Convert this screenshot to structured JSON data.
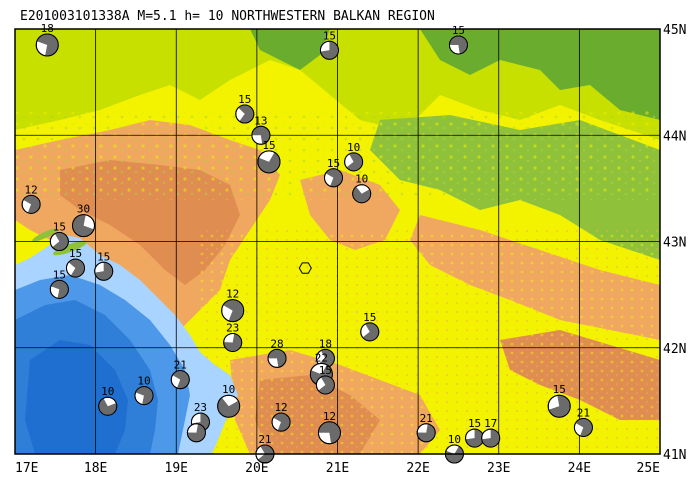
{
  "header": {
    "title": "E201003101338A M=5.1 h= 10 NORTHWESTERN BALKAN REGION"
  },
  "axes": {
    "x_ticks": [
      "17E",
      "18E",
      "19E",
      "20E",
      "21E",
      "22E",
      "23E",
      "24E",
      "25E"
    ],
    "y_ticks": [
      "45N",
      "44N",
      "43N",
      "42N",
      "41N"
    ]
  },
  "colors": {
    "frame": "#000000",
    "deep_sea": "#2f7fd8",
    "mid_sea": "#4d98e8",
    "shallow_sea": "#a9d4ff",
    "lowland": "#f3f300",
    "upland": "#c8e000",
    "hills": "#f0a860",
    "mountains": "#e08d52",
    "forest_green": "#8fc23a",
    "dark_green": "#6aad2e",
    "grid": "#000000"
  },
  "epicenter": {
    "lon": 20.6,
    "lat": 42.75,
    "marker": "hexagon"
  },
  "events": [
    {
      "lon": 17.4,
      "lat": 44.85,
      "depth": "18",
      "rot": 20
    },
    {
      "lon": 20.9,
      "lat": 44.8,
      "depth": "15",
      "rot": 90
    },
    {
      "lon": 22.5,
      "lat": 44.85,
      "depth": "15",
      "rot": 0
    },
    {
      "lon": 19.85,
      "lat": 44.2,
      "depth": "15",
      "rot": 45
    },
    {
      "lon": 20.05,
      "lat": 44.0,
      "depth": "13",
      "rot": 0
    },
    {
      "lon": 20.15,
      "lat": 43.75,
      "depth": "15",
      "rot": 120
    },
    {
      "lon": 21.2,
      "lat": 43.75,
      "depth": "10",
      "rot": 60
    },
    {
      "lon": 20.95,
      "lat": 43.6,
      "depth": "15",
      "rot": 30
    },
    {
      "lon": 21.3,
      "lat": 43.45,
      "depth": "10",
      "rot": 150
    },
    {
      "lon": 17.2,
      "lat": 43.35,
      "depth": "12",
      "rot": 30
    },
    {
      "lon": 17.85,
      "lat": 43.15,
      "depth": "30",
      "rot": 200
    },
    {
      "lon": 17.55,
      "lat": 43.0,
      "depth": "15",
      "rot": 60
    },
    {
      "lon": 17.75,
      "lat": 42.75,
      "depth": "15",
      "rot": 40
    },
    {
      "lon": 18.1,
      "lat": 42.72,
      "depth": "15",
      "rot": 90
    },
    {
      "lon": 17.55,
      "lat": 42.55,
      "depth": "15",
      "rot": 20
    },
    {
      "lon": 19.7,
      "lat": 42.35,
      "depth": "12",
      "rot": 30
    },
    {
      "lon": 21.4,
      "lat": 42.15,
      "depth": "15",
      "rot": 60
    },
    {
      "lon": 19.7,
      "lat": 42.05,
      "depth": "23",
      "rot": 100
    },
    {
      "lon": 20.25,
      "lat": 41.9,
      "depth": "28",
      "rot": 0
    },
    {
      "lon": 20.85,
      "lat": 41.9,
      "depth": "18",
      "rot": 60
    },
    {
      "lon": 20.8,
      "lat": 41.75,
      "depth": "22",
      "rot": 120
    },
    {
      "lon": 20.85,
      "lat": 41.65,
      "depth": "15",
      "rot": 60
    },
    {
      "lon": 19.05,
      "lat": 41.7,
      "depth": "21",
      "rot": 30
    },
    {
      "lon": 18.6,
      "lat": 41.55,
      "depth": "10",
      "rot": 20
    },
    {
      "lon": 18.15,
      "lat": 41.45,
      "depth": "10",
      "rot": 160
    },
    {
      "lon": 19.65,
      "lat": 41.45,
      "depth": "10",
      "rot": 150
    },
    {
      "lon": 19.3,
      "lat": 41.3,
      "depth": "23",
      "rot": 90
    },
    {
      "lon": 19.25,
      "lat": 41.2,
      "depth": "",
      "rot": 100
    },
    {
      "lon": 20.3,
      "lat": 41.3,
      "depth": "12",
      "rot": 30
    },
    {
      "lon": 20.1,
      "lat": 41.0,
      "depth": "21",
      "rot": 60
    },
    {
      "lon": 20.9,
      "lat": 41.2,
      "depth": "12",
      "rot": 0
    },
    {
      "lon": 22.1,
      "lat": 41.2,
      "depth": "21",
      "rot": 100
    },
    {
      "lon": 22.45,
      "lat": 41.0,
      "depth": "10",
      "rot": 120
    },
    {
      "lon": 22.7,
      "lat": 41.15,
      "depth": "15",
      "rot": 90
    },
    {
      "lon": 22.9,
      "lat": 41.15,
      "depth": "17",
      "rot": 90
    },
    {
      "lon": 23.75,
      "lat": 41.45,
      "depth": "15",
      "rot": 80
    },
    {
      "lon": 24.05,
      "lat": 41.25,
      "depth": "21",
      "rot": 30
    }
  ]
}
